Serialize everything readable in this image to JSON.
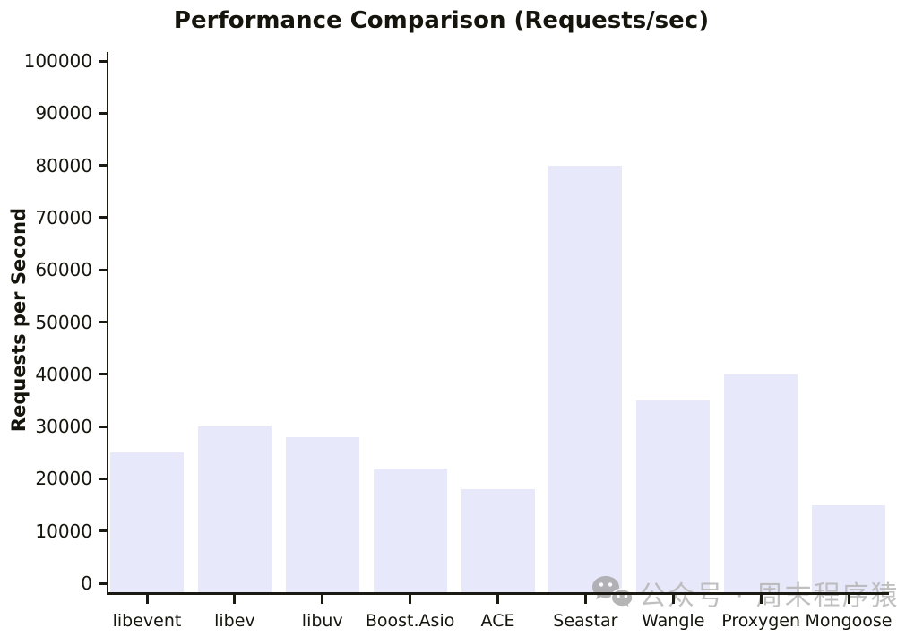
{
  "chart_data": {
    "type": "bar",
    "title": "Performance Comparison (Requests/sec)",
    "ylabel": "Requests per Second",
    "categories": [
      "libevent",
      "libev",
      "libuv",
      "Boost.Asio",
      "ACE",
      "Seastar",
      "Wangle",
      "Proxygen",
      "Mongoose"
    ],
    "values": [
      25000,
      30000,
      28000,
      22000,
      18000,
      80000,
      35000,
      40000,
      15000
    ],
    "ylim": [
      0,
      100000
    ],
    "yticks": [
      0,
      10000,
      20000,
      30000,
      40000,
      50000,
      60000,
      70000,
      80000,
      90000,
      100000
    ],
    "grid": false,
    "legend_position": "none",
    "bar_color": "#e8e8fb",
    "axis_color": "#1a1a12",
    "text_color": "#15150d"
  },
  "watermark": {
    "text": "公众号 · 周末程序猿",
    "icon": "wechat-icon",
    "color": "#b3b3b3"
  }
}
